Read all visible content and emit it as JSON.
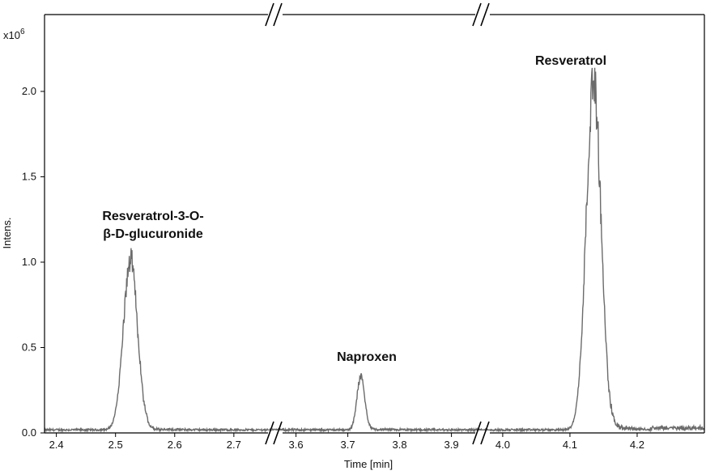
{
  "chart_data": {
    "type": "line",
    "title": "",
    "xlabel": "Time [min]",
    "ylabel": "Intens.",
    "y_multiplier": "x10",
    "y_multiplier_exp": "6",
    "ylim": [
      0,
      2.45
    ],
    "y_ticks": [
      "0.0",
      "0.5",
      "1.0",
      "1.5",
      "2.0"
    ],
    "y_tick_values": [
      0.0,
      0.5,
      1.0,
      1.5,
      2.0
    ],
    "x_axis_broken": true,
    "x_segments": [
      {
        "xlim": [
          2.38,
          2.77
        ],
        "ticks": [
          2.4,
          2.5,
          2.6,
          2.7
        ],
        "tick_labels": [
          "2.4",
          "2.5",
          "2.6",
          "2.7"
        ]
      },
      {
        "xlim": [
          3.56,
          3.96
        ],
        "ticks": [
          3.6,
          3.7,
          3.8,
          3.9
        ],
        "tick_labels": [
          "3.6",
          "3.7",
          "3.8",
          "3.9"
        ]
      },
      {
        "xlim": [
          3.97,
          4.3
        ],
        "ticks": [
          4.0,
          4.1,
          4.2
        ],
        "tick_labels": [
          "4.0",
          "4.1",
          "4.2"
        ]
      }
    ],
    "series_color": "#6b6b6b",
    "peaks": [
      {
        "segment": 0,
        "x": 2.525,
        "y": 1.04,
        "label": "Resveratrol-3-O-β-D-glucuronide",
        "label_lines": [
          "Resveratrol-3-O-",
          "β-D-glucuronide"
        ]
      },
      {
        "segment": 1,
        "x": 3.725,
        "y": 0.33,
        "label": "Naproxen",
        "label_lines": [
          "Naproxen"
        ]
      },
      {
        "segment": 2,
        "x": 4.135,
        "y": 2.15,
        "label": "Resveratrol",
        "label_lines": [
          "Resveratrol"
        ]
      }
    ],
    "grid": false
  }
}
